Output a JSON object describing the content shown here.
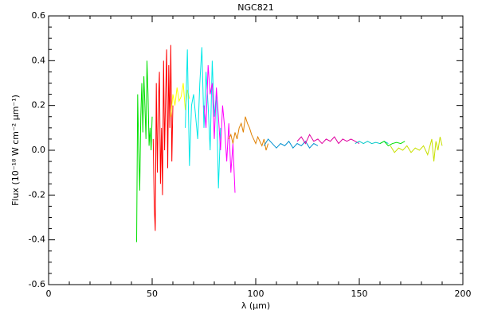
{
  "chart_data": {
    "type": "line",
    "title": "NGC821",
    "xlabel": "λ (μm)",
    "ylabel": "Flux (10⁻¹⁸ W cm⁻² μm⁻¹)",
    "xlim": [
      0,
      200
    ],
    "xticks": [
      0,
      50,
      100,
      150,
      200
    ],
    "ylim": [
      -0.6,
      0.6
    ],
    "yticks": [
      -0.6,
      -0.4,
      -0.2,
      {
        "value": 0,
        "label": "0.0"
      },
      0.2,
      0.4,
      0.6
    ],
    "series": [
      {
        "color": "#00e000",
        "x": [
          42.5,
          43,
          43.5,
          44,
          44.5,
          45,
          45.5,
          46,
          46.5,
          47,
          47.5,
          48,
          48.5,
          49,
          49.5,
          50
        ],
        "values": [
          -0.41,
          0.25,
          0.0,
          -0.18,
          0.15,
          0.3,
          0.08,
          0.33,
          0.2,
          0.05,
          0.4,
          0.25,
          0.02,
          0.1,
          0.0,
          0.15
        ]
      },
      {
        "color": "#ff0000",
        "x": [
          50.5,
          51,
          51.5,
          52,
          52.5,
          53,
          53.5,
          54,
          54.5,
          55,
          55.5,
          56,
          56.5,
          57,
          57.5,
          58,
          58.5,
          59,
          59.5,
          60
        ],
        "values": [
          0.05,
          -0.25,
          -0.36,
          0.3,
          -0.1,
          0.2,
          0.35,
          -0.15,
          0.1,
          -0.2,
          0.4,
          0.0,
          0.25,
          0.45,
          -0.08,
          0.38,
          0.1,
          0.47,
          -0.05,
          0.2
        ]
      },
      {
        "color": "#ffff00",
        "x": [
          59,
          60,
          61,
          62,
          63,
          64,
          65,
          66,
          67,
          68
        ],
        "values": [
          0.15,
          0.25,
          0.2,
          0.28,
          0.22,
          0.24,
          0.3,
          0.18,
          0.27,
          0.23
        ]
      },
      {
        "color": "#00e8e8",
        "x": [
          66,
          67,
          68,
          69,
          70,
          71,
          72,
          73,
          74,
          75,
          76,
          77,
          78,
          79,
          80,
          81,
          82,
          83
        ],
        "values": [
          0.1,
          0.45,
          -0.07,
          0.2,
          0.25,
          0.15,
          0.05,
          0.3,
          0.46,
          0.1,
          0.35,
          0.2,
          0.0,
          0.4,
          0.15,
          0.25,
          -0.17,
          0.1
        ]
      },
      {
        "color": "#ff00ff",
        "x": [
          75,
          76,
          77,
          78,
          79,
          80,
          81,
          82,
          83,
          84,
          85,
          86,
          87,
          88,
          89,
          90
        ],
        "values": [
          0.2,
          0.1,
          0.38,
          0.25,
          0.3,
          0.05,
          0.28,
          0.15,
          0.0,
          0.2,
          0.1,
          -0.05,
          0.12,
          -0.1,
          0.03,
          -0.19
        ]
      },
      {
        "color": "#e08000",
        "x": [
          87,
          88,
          89,
          90,
          91,
          92,
          93,
          94,
          95,
          96,
          97,
          98,
          99,
          100,
          101,
          102,
          103,
          104,
          105,
          106
        ],
        "values": [
          0.05,
          0.07,
          0.03,
          0.08,
          0.05,
          0.1,
          0.12,
          0.08,
          0.15,
          0.12,
          0.1,
          0.07,
          0.05,
          0.03,
          0.06,
          0.04,
          0.02,
          0.05,
          0.0,
          0.03
        ]
      },
      {
        "color": "#0090d0",
        "x": [
          104,
          106,
          108,
          110,
          112,
          114,
          116,
          118,
          120,
          122,
          124,
          126,
          128,
          130
        ],
        "values": [
          0.02,
          0.05,
          0.03,
          0.01,
          0.03,
          0.02,
          0.04,
          0.01,
          0.03,
          0.02,
          0.04,
          0.01,
          0.03,
          0.02
        ]
      },
      {
        "color": "#e000a0",
        "x": [
          120,
          122,
          124,
          126,
          128,
          130,
          132,
          134,
          136,
          138,
          140,
          142,
          144,
          146,
          148,
          150
        ],
        "values": [
          0.04,
          0.06,
          0.03,
          0.07,
          0.04,
          0.05,
          0.03,
          0.05,
          0.04,
          0.06,
          0.03,
          0.05,
          0.04,
          0.05,
          0.04,
          0.03
        ]
      },
      {
        "color": "#00c8c8",
        "x": [
          148,
          150,
          152,
          154,
          156,
          158,
          160,
          162,
          164
        ],
        "values": [
          0.03,
          0.04,
          0.03,
          0.04,
          0.03,
          0.035,
          0.03,
          0.04,
          0.03
        ]
      },
      {
        "color": "#00e000",
        "x": [
          160,
          162,
          164,
          166,
          168,
          170,
          172
        ],
        "values": [
          0.03,
          0.04,
          0.02,
          0.03,
          0.035,
          0.03,
          0.04
        ]
      },
      {
        "color": "#c8e000",
        "x": [
          165,
          167,
          169,
          171,
          173,
          175,
          177,
          179,
          181,
          183,
          185,
          186,
          187,
          188,
          189,
          190
        ],
        "values": [
          0.02,
          -0.01,
          0.01,
          0.0,
          0.02,
          -0.01,
          0.01,
          0.0,
          0.02,
          -0.02,
          0.05,
          -0.05,
          0.04,
          0.0,
          0.06,
          0.02
        ]
      }
    ]
  }
}
